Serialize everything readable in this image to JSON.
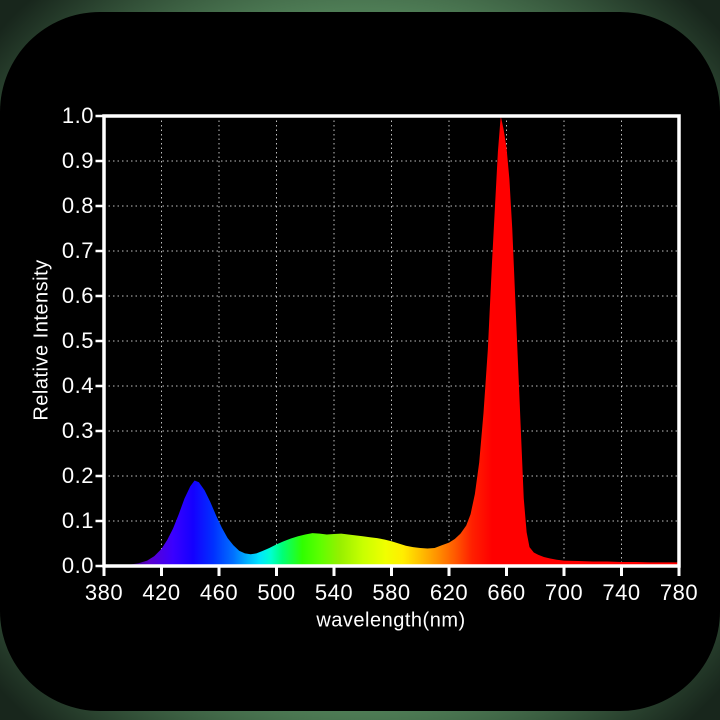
{
  "page": {
    "background_color_center": "#4e7c55",
    "background_color_edge": "#18261c",
    "card_color": "#000000"
  },
  "chart_data": {
    "type": "area",
    "title": "",
    "xlabel": "wavelength(nm)",
    "ylabel": "Relative Intensity",
    "xlim": [
      380,
      780
    ],
    "ylim": [
      0,
      1
    ],
    "x_ticks": [
      380,
      420,
      460,
      500,
      540,
      580,
      620,
      660,
      700,
      740,
      780
    ],
    "y_ticks": [
      {
        "value": 0.0,
        "label": "0.0"
      },
      {
        "value": 0.1,
        "label": "0.1"
      },
      {
        "value": 0.2,
        "label": "0.2"
      },
      {
        "value": 0.3,
        "label": "0.3"
      },
      {
        "value": 0.4,
        "label": "0.4"
      },
      {
        "value": 0.5,
        "label": "0.5"
      },
      {
        "value": 0.6,
        "label": "0.6"
      },
      {
        "value": 0.7,
        "label": "0.7"
      },
      {
        "value": 0.8,
        "label": "0.8"
      },
      {
        "value": 0.9,
        "label": "0.9"
      },
      {
        "value": 1.0,
        "label": "1.0"
      }
    ],
    "grid": {
      "on": true,
      "style": "dotted",
      "color": "rgba(255,255,255,0.75)"
    },
    "axis_color": "#ffffff",
    "text_color": "#ffffff",
    "legend": "none",
    "series": [
      {
        "name": "led-emission-spectrum",
        "fill": "spectral-gradient",
        "points": [
          [
            380,
            0
          ],
          [
            392,
            0.001
          ],
          [
            398,
            0.003
          ],
          [
            404,
            0.006
          ],
          [
            410,
            0.012
          ],
          [
            415,
            0.022
          ],
          [
            420,
            0.038
          ],
          [
            424,
            0.058
          ],
          [
            428,
            0.083
          ],
          [
            432,
            0.115
          ],
          [
            436,
            0.15
          ],
          [
            440,
            0.177
          ],
          [
            443,
            0.19
          ],
          [
            446,
            0.186
          ],
          [
            450,
            0.168
          ],
          [
            454,
            0.142
          ],
          [
            458,
            0.112
          ],
          [
            462,
            0.085
          ],
          [
            466,
            0.062
          ],
          [
            470,
            0.046
          ],
          [
            474,
            0.034
          ],
          [
            478,
            0.028
          ],
          [
            482,
            0.026
          ],
          [
            486,
            0.028
          ],
          [
            490,
            0.033
          ],
          [
            495,
            0.04
          ],
          [
            500,
            0.048
          ],
          [
            505,
            0.055
          ],
          [
            510,
            0.061
          ],
          [
            515,
            0.066
          ],
          [
            520,
            0.07
          ],
          [
            525,
            0.073
          ],
          [
            530,
            0.072
          ],
          [
            535,
            0.07
          ],
          [
            540,
            0.071
          ],
          [
            545,
            0.072
          ],
          [
            550,
            0.07
          ],
          [
            555,
            0.068
          ],
          [
            560,
            0.066
          ],
          [
            565,
            0.064
          ],
          [
            570,
            0.062
          ],
          [
            575,
            0.059
          ],
          [
            580,
            0.055
          ],
          [
            585,
            0.05
          ],
          [
            590,
            0.045
          ],
          [
            595,
            0.042
          ],
          [
            600,
            0.04
          ],
          [
            605,
            0.039
          ],
          [
            610,
            0.04
          ],
          [
            615,
            0.046
          ],
          [
            620,
            0.052
          ],
          [
            624,
            0.06
          ],
          [
            628,
            0.072
          ],
          [
            632,
            0.09
          ],
          [
            635,
            0.115
          ],
          [
            638,
            0.16
          ],
          [
            641,
            0.23
          ],
          [
            644,
            0.34
          ],
          [
            647,
            0.48
          ],
          [
            650,
            0.68
          ],
          [
            652,
            0.8
          ],
          [
            654,
            0.92
          ],
          [
            656,
            1.0
          ],
          [
            658,
            0.97
          ],
          [
            660,
            0.93
          ],
          [
            662,
            0.86
          ],
          [
            664,
            0.75
          ],
          [
            666,
            0.6
          ],
          [
            668,
            0.45
          ],
          [
            670,
            0.3
          ],
          [
            672,
            0.15
          ],
          [
            674,
            0.075
          ],
          [
            676,
            0.042
          ],
          [
            679,
            0.03
          ],
          [
            682,
            0.025
          ],
          [
            686,
            0.02
          ],
          [
            690,
            0.017
          ],
          [
            695,
            0.014
          ],
          [
            700,
            0.012
          ],
          [
            710,
            0.011
          ],
          [
            720,
            0.01
          ],
          [
            730,
            0.01
          ],
          [
            740,
            0.009
          ],
          [
            750,
            0.009
          ],
          [
            760,
            0.008
          ],
          [
            770,
            0.008
          ],
          [
            780,
            0.008
          ]
        ]
      }
    ],
    "gradient_stops": [
      {
        "wavelength": 395,
        "color": "#2a0060"
      },
      {
        "wavelength": 412,
        "color": "#5a00d0"
      },
      {
        "wavelength": 428,
        "color": "#3a00ff"
      },
      {
        "wavelength": 442,
        "color": "#1400ff"
      },
      {
        "wavelength": 456,
        "color": "#0030ff"
      },
      {
        "wavelength": 470,
        "color": "#0070ff"
      },
      {
        "wavelength": 480,
        "color": "#00b4ff"
      },
      {
        "wavelength": 488,
        "color": "#00e4ff"
      },
      {
        "wavelength": 496,
        "color": "#00ffd0"
      },
      {
        "wavelength": 504,
        "color": "#00ff78"
      },
      {
        "wavelength": 518,
        "color": "#30ff00"
      },
      {
        "wavelength": 530,
        "color": "#5cff00"
      },
      {
        "wavelength": 544,
        "color": "#96f000"
      },
      {
        "wavelength": 560,
        "color": "#c8ff00"
      },
      {
        "wavelength": 576,
        "color": "#f0ff00"
      },
      {
        "wavelength": 588,
        "color": "#ffee00"
      },
      {
        "wavelength": 600,
        "color": "#ffc000"
      },
      {
        "wavelength": 612,
        "color": "#ff9000"
      },
      {
        "wavelength": 624,
        "color": "#ff5a00"
      },
      {
        "wavelength": 636,
        "color": "#ff2000"
      },
      {
        "wavelength": 650,
        "color": "#ff0000"
      },
      {
        "wavelength": 780,
        "color": "#ff0000"
      }
    ]
  }
}
